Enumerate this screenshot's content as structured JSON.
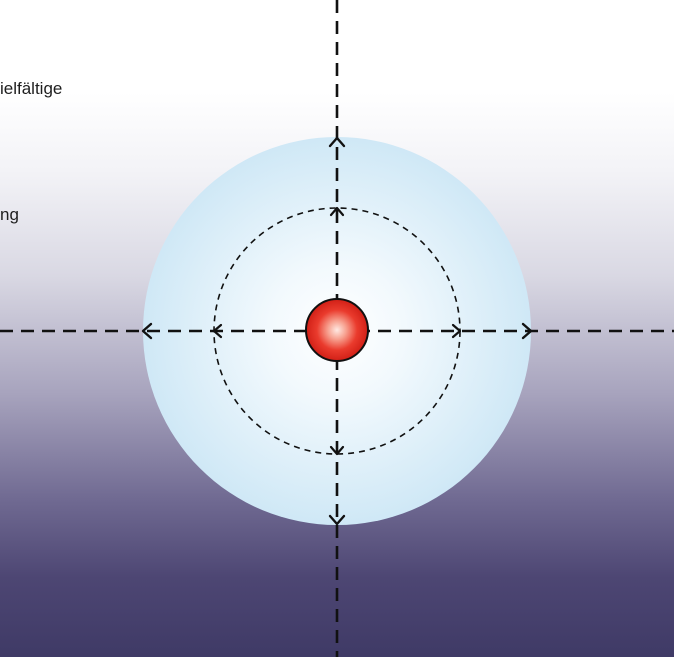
{
  "text_fragments": {
    "top_right_fragment": "ielfältige",
    "middle_fragment": "ng"
  },
  "colors": {
    "outer_sphere_edge": "#cfe8f6",
    "outer_sphere_center": "#ffffff",
    "core_red": "#e0261c",
    "core_highlight": "#ffd6cc",
    "dashed_line": "#111111",
    "background_top": "#ffffff",
    "background_bottom": "#3f3a66"
  },
  "icons": {
    "core": "red-particle",
    "arrows": "arrow-heads"
  }
}
